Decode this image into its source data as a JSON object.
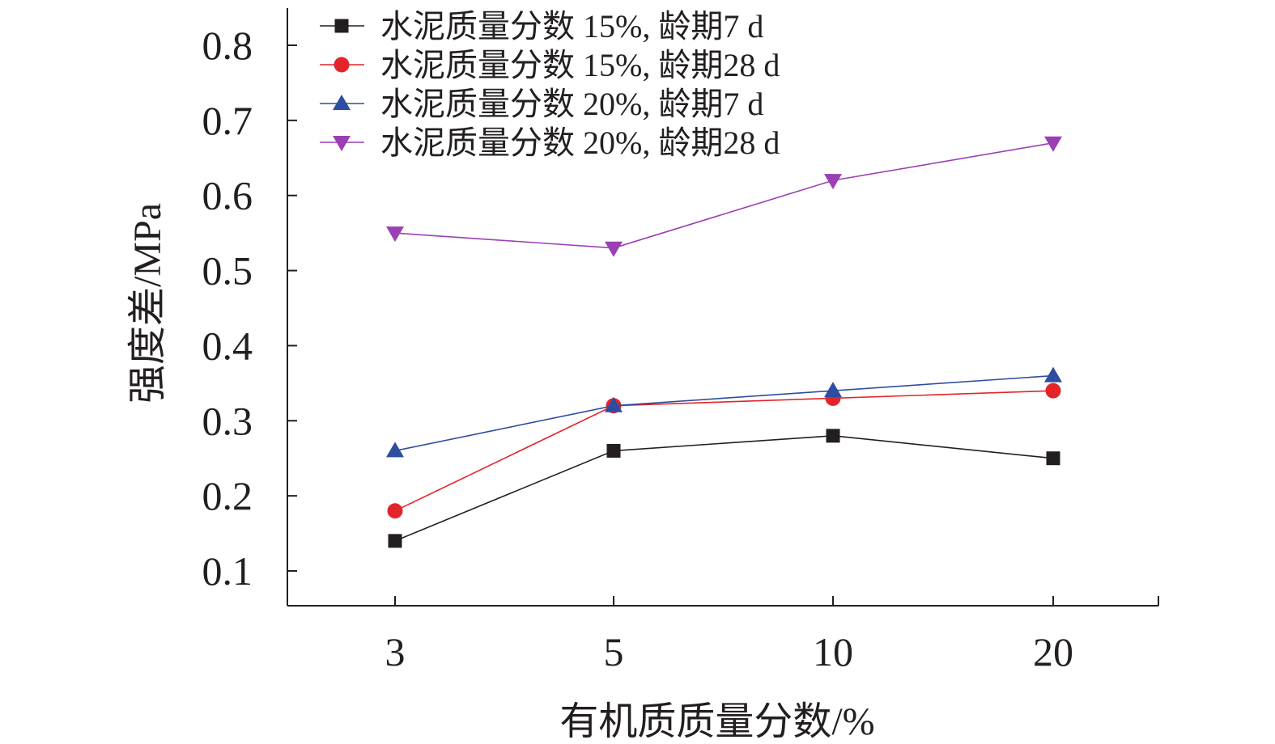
{
  "chart_data": {
    "type": "line",
    "categories": [
      "3",
      "5",
      "10",
      "20"
    ],
    "xlabel": "有机质质量分数/%",
    "ylabel": "强度差/MPa",
    "ylim": [
      0.05,
      0.85
    ],
    "yticks": [
      0.1,
      0.2,
      0.3,
      0.4,
      0.5,
      0.6,
      0.7,
      0.8
    ],
    "ytick_labels": [
      "0.1",
      "0.2",
      "0.3",
      "0.4",
      "0.5",
      "0.6",
      "0.7",
      "0.8"
    ],
    "grid": false,
    "legend_position": "top-left",
    "series": [
      {
        "name": "水泥质量分数 15%, 龄期7 d",
        "values": [
          0.14,
          0.26,
          0.28,
          0.25
        ],
        "color": "#231f20",
        "marker": "square"
      },
      {
        "name": "水泥质量分数 15%, 龄期28 d",
        "values": [
          0.18,
          0.32,
          0.33,
          0.34
        ],
        "color": "#e3242b",
        "marker": "circle"
      },
      {
        "name": "水泥质量分数 20%, 龄期7 d",
        "values": [
          0.26,
          0.32,
          0.34,
          0.36
        ],
        "color": "#2e4da0",
        "marker": "triangle-up"
      },
      {
        "name": "水泥质量分数 20%, 龄期28 d",
        "values": [
          0.55,
          0.53,
          0.62,
          0.67
        ],
        "color": "#9b3fb5",
        "marker": "triangle-down"
      }
    ]
  }
}
